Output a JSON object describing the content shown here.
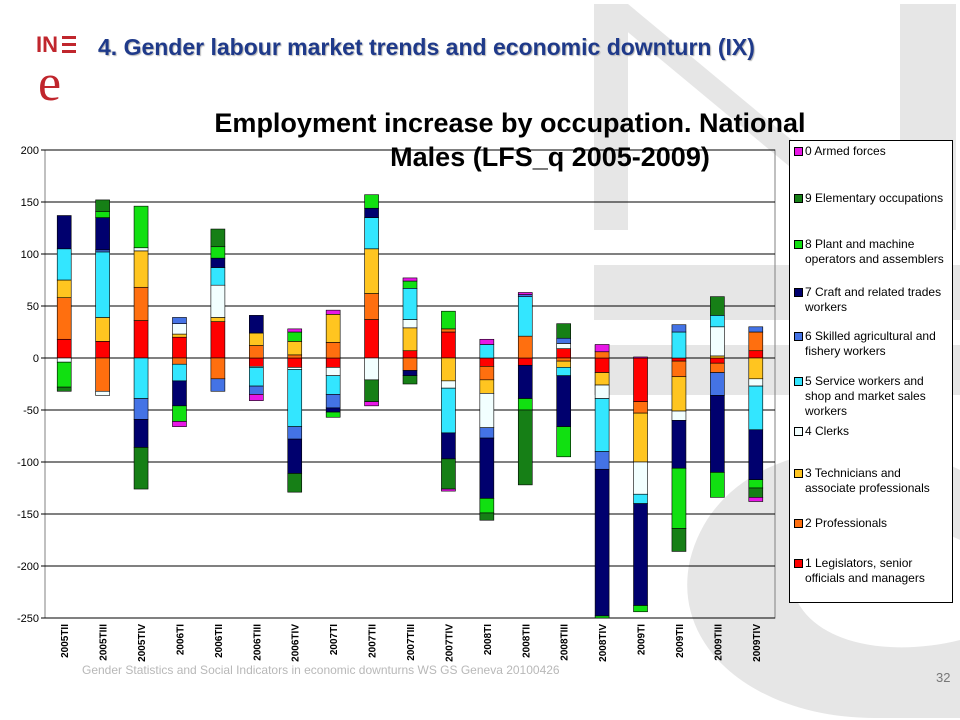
{
  "header": {
    "title": "4. Gender labour market trends and economic downturn (IX)",
    "logo_text": "INE"
  },
  "footer": {
    "text": "Gender Statistics and Social Indicators in economic downturns WS GS Geneva 20100426",
    "page_number": "32"
  },
  "colors": {
    "title": "#1f3a8a",
    "watermark": "#d3d3d3",
    "logo": "#c0262d"
  },
  "chart_data": {
    "type": "bar",
    "stacked": true,
    "title": "Employment increase by occupation. National Males (LFS_q 2005-2009)",
    "title_lines": [
      "Employment increase by occupation. National",
      "Males (LFS_q 2005-2009)"
    ],
    "xlabel": "",
    "ylabel": "",
    "ylim": [
      -250,
      200
    ],
    "yticks": [
      200,
      150,
      100,
      50,
      0,
      -50,
      -100,
      -150,
      -200,
      -250
    ],
    "grid": true,
    "legend_position": "right",
    "categories": [
      "2005TII",
      "2005TIII",
      "2005TIV",
      "2006TI",
      "2006TII",
      "2006TIII",
      "2006TIV",
      "2007TI",
      "2007TII",
      "2007TIII",
      "2007TIV",
      "2008TI",
      "2008TII",
      "2008TIII",
      "2008TIV",
      "2009TI",
      "2009TII",
      "2009TIII",
      "2009TIV"
    ],
    "series": [
      {
        "name": "1 Legislators, senior officials and managers",
        "color": "#ff0000",
        "values": [
          18,
          16,
          36,
          20,
          35,
          -8,
          -9,
          -9,
          37,
          7,
          25,
          -8,
          -7,
          9,
          -14,
          -42,
          -3,
          -5,
          7
        ]
      },
      {
        "name": "2 Professionals",
        "color": "#ff6f0f",
        "values": [
          40,
          -32,
          32,
          -6,
          -20,
          12,
          3,
          15,
          25,
          -12,
          3,
          -13,
          21,
          -3,
          6,
          -11,
          -15,
          -9,
          18
        ]
      },
      {
        "name": "3 Technicians and associate professionals",
        "color": "#ffc520",
        "values": [
          17,
          23,
          35,
          3,
          4,
          12,
          13,
          27,
          43,
          22,
          -22,
          -13,
          0,
          -6,
          -12,
          -47,
          -33,
          2,
          -20
        ]
      },
      {
        "name": "4 Clerks",
        "color": "#f2ffff",
        "values": [
          -4,
          -4,
          3,
          10,
          31,
          -1,
          -2,
          -8,
          -21,
          8,
          -7,
          -33,
          0,
          5,
          -13,
          -31,
          -9,
          28,
          -7
        ]
      },
      {
        "name": "5 Service workers and shop and market sales workers",
        "color": "#33e6ff",
        "values": [
          30,
          63,
          -39,
          -16,
          17,
          -18,
          -55,
          -18,
          30,
          30,
          -43,
          13,
          38,
          -8,
          -51,
          -9,
          25,
          11,
          -42
        ]
      },
      {
        "name": "6 Skilled agricultural and fishery workers",
        "color": "#4473e5",
        "values": [
          0,
          2,
          -20,
          6,
          -12,
          -8,
          -12,
          -13,
          0,
          0,
          0,
          -10,
          2,
          5,
          -17,
          0,
          7,
          -22,
          5
        ]
      },
      {
        "name": "7 Craft and related trades workers",
        "color": "#00006e",
        "values": [
          32,
          31,
          -27,
          -24,
          9,
          17,
          -33,
          -4,
          9,
          -5,
          -25,
          -58,
          -32,
          -49,
          -141,
          -98,
          -46,
          -74,
          -48
        ]
      },
      {
        "name": "8 Plant and machine operators and assemblers",
        "color": "#11e011",
        "values": [
          -24,
          6,
          40,
          -15,
          11,
          0,
          9,
          -5,
          13,
          7,
          17,
          -14,
          -11,
          -29,
          -5,
          -6,
          -58,
          -24,
          -8
        ]
      },
      {
        "name": "9 Elementary occupations",
        "color": "#167f16",
        "values": [
          -4,
          11,
          -40,
          0,
          17,
          0,
          -18,
          0,
          -21,
          -8,
          -29,
          -7,
          -72,
          14,
          0,
          0,
          -22,
          18,
          -9
        ]
      },
      {
        "name": "0 Armed forces",
        "color": "#e817e6",
        "values": [
          0,
          0,
          0,
          -5,
          0,
          -6,
          3,
          4,
          -4,
          3,
          -2,
          5,
          2,
          0,
          7,
          1,
          0,
          0,
          -4
        ]
      }
    ]
  }
}
